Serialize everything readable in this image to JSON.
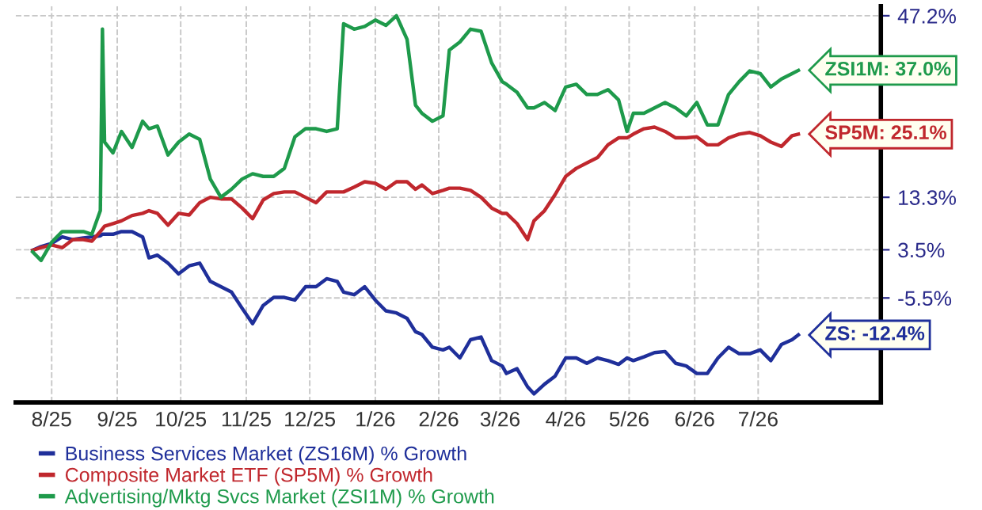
{
  "chart_data": {
    "type": "line",
    "x": [
      "2025-08-07",
      "2025-08-11",
      "2025-08-16",
      "2025-08-21",
      "2025-08-26",
      "2025-08-31",
      "2025-09-04",
      "2025-09-08",
      "2025-09-09",
      "2025-09-10",
      "2025-09-14",
      "2025-09-18",
      "2025-09-23",
      "2025-09-28",
      "2025-10-01",
      "2025-10-05",
      "2025-10-10",
      "2025-10-15",
      "2025-10-20",
      "2025-10-25",
      "2025-10-30",
      "2025-11-04",
      "2025-11-09",
      "2025-11-14",
      "2025-11-19",
      "2025-11-24",
      "2025-11-29",
      "2025-12-04",
      "2025-12-09",
      "2025-12-14",
      "2025-12-19",
      "2025-12-24",
      "2025-12-29",
      "2026-01-01",
      "2026-01-06",
      "2026-01-11",
      "2026-01-16",
      "2026-01-21",
      "2026-01-26",
      "2026-01-31",
      "2026-02-04",
      "2026-02-07",
      "2026-02-12",
      "2026-02-17",
      "2026-02-20",
      "2026-02-25",
      "2026-03-02",
      "2026-03-07",
      "2026-03-12",
      "2026-03-17",
      "2026-03-19",
      "2026-03-24",
      "2026-03-29",
      "2026-04-01",
      "2026-04-06",
      "2026-04-11",
      "2026-04-16",
      "2026-04-21",
      "2026-04-26",
      "2026-05-01",
      "2026-05-06",
      "2026-05-11",
      "2026-05-15",
      "2026-05-18",
      "2026-05-23",
      "2026-05-28",
      "2026-06-02",
      "2026-06-07",
      "2026-06-12",
      "2026-06-17",
      "2026-06-22",
      "2026-06-27",
      "2026-07-02",
      "2026-07-07",
      "2026-07-12",
      "2026-07-17",
      "2026-07-22",
      "2026-07-27",
      "2026-08-01",
      "2026-08-04"
    ],
    "series": [
      {
        "name": "Business Services Market (ZS16M) % Growth",
        "color": "#1f2f9a",
        "values": [
          3.4,
          4.1,
          4.7,
          5.9,
          5.4,
          5.7,
          5.9,
          6.1,
          6.4,
          6.4,
          6.4,
          6.9,
          6.9,
          5.9,
          2.0,
          2.5,
          1.0,
          -1.0,
          0.5,
          1.0,
          -2.4,
          -3.4,
          -4.4,
          -7.4,
          -10.3,
          -6.9,
          -5.4,
          -5.4,
          -5.9,
          -3.4,
          -3.4,
          -1.9,
          -2.4,
          -4.4,
          -4.9,
          -3.4,
          -5.9,
          -7.9,
          -8.3,
          -9.3,
          -11.8,
          -12.3,
          -14.7,
          -15.2,
          -14.7,
          -16.7,
          -13.3,
          -12.8,
          -17.2,
          -18.2,
          -19.6,
          -18.7,
          -22.1,
          -23.4,
          -21.6,
          -20.1,
          -16.7,
          -16.7,
          -17.7,
          -16.7,
          -17.2,
          -17.9,
          -16.7,
          -17.2,
          -16.5,
          -15.7,
          -15.5,
          -17.7,
          -18.2,
          -19.6,
          -19.6,
          -16.7,
          -14.7,
          -15.9,
          -15.9,
          -15.2,
          -17.2,
          -14.2,
          -13.3,
          -12.4
        ]
      },
      {
        "name": "Composite Market ETF (SP5M) % Growth",
        "color": "#c0272d",
        "values": [
          3.4,
          3.9,
          4.4,
          3.9,
          5.4,
          5.4,
          5.1,
          6.9,
          7.4,
          7.9,
          8.4,
          8.9,
          9.9,
          10.3,
          10.8,
          10.3,
          8.1,
          10.3,
          10.0,
          12.3,
          13.3,
          13.0,
          13.0,
          11.3,
          9.3,
          12.8,
          14.0,
          14.3,
          14.3,
          13.3,
          12.3,
          14.3,
          14.3,
          14.3,
          15.2,
          16.2,
          15.9,
          14.8,
          16.2,
          16.2,
          14.8,
          15.6,
          14.0,
          14.6,
          15.0,
          15.0,
          14.6,
          13.3,
          11.3,
          10.3,
          10.3,
          8.4,
          5.4,
          8.9,
          10.8,
          13.8,
          17.2,
          18.7,
          19.7,
          20.7,
          23.1,
          24.4,
          24.4,
          25.1,
          26.1,
          26.4,
          25.6,
          24.4,
          24.4,
          24.6,
          23.1,
          23.1,
          24.4,
          25.1,
          25.4,
          24.8,
          23.6,
          22.8,
          24.8,
          25.1
        ]
      },
      {
        "name": "Advertising/Mktg Svcs Market (ZSI1M) % Growth",
        "color": "#1e9a4b",
        "values": [
          3.1,
          1.5,
          4.9,
          6.9,
          6.9,
          6.9,
          6.4,
          10.8,
          44.7,
          23.6,
          21.6,
          25.6,
          22.6,
          27.5,
          26.1,
          26.6,
          21.2,
          23.6,
          25.1,
          24.1,
          16.7,
          13.3,
          14.8,
          16.7,
          17.7,
          17.2,
          17.2,
          18.7,
          24.6,
          26.1,
          26.1,
          25.6,
          26.1,
          45.7,
          44.7,
          45.2,
          46.4,
          45.4,
          47.2,
          42.8,
          30.5,
          29.0,
          27.5,
          28.5,
          40.8,
          42.3,
          44.7,
          44.3,
          38.4,
          34.9,
          34.4,
          32.9,
          30.0,
          30.0,
          31.0,
          29.5,
          33.9,
          34.4,
          32.5,
          32.5,
          33.4,
          31.5,
          25.6,
          29.0,
          29.0,
          30.0,
          31.0,
          30.0,
          28.5,
          31.0,
          26.8,
          26.8,
          32.5,
          34.9,
          36.9,
          36.4,
          33.9,
          35.4,
          36.4,
          37.0
        ]
      }
    ],
    "annotations": [
      {
        "text": "ZS: -12.4%",
        "x": "2026-08-04",
        "y": -12.4
      },
      {
        "text": "SP5M: 25.1%",
        "x": "2026-08-04",
        "y": 25.1
      },
      {
        "text": "ZSI1M: 37.0%",
        "x": "2026-08-04",
        "y": 37.0
      }
    ],
    "xlim": [
      "2025-07-30",
      "2026-09-12"
    ],
    "xticks": [
      {
        "value": "2025-08-16",
        "label": "8/25"
      },
      {
        "value": "2025-09-16",
        "label": "9/25"
      },
      {
        "value": "2025-10-16",
        "label": "10/25"
      },
      {
        "value": "2025-11-16",
        "label": "11/25"
      },
      {
        "value": "2025-12-16",
        "label": "12/25"
      },
      {
        "value": "2026-01-16",
        "label": "1/26"
      },
      {
        "value": "2026-02-15",
        "label": "2/26"
      },
      {
        "value": "2026-03-16",
        "label": "3/26"
      },
      {
        "value": "2026-04-16",
        "label": "4/26"
      },
      {
        "value": "2026-05-16",
        "label": "5/26"
      },
      {
        "value": "2026-06-16",
        "label": "6/26"
      },
      {
        "value": "2026-07-16",
        "label": "7/26"
      }
    ],
    "ylim": [
      -25,
      49
    ],
    "yticks": [
      {
        "value": 47.2,
        "label": "47.2%"
      },
      {
        "value": 13.3,
        "label": "13.3%"
      },
      {
        "value": 3.5,
        "label": "3.5%"
      },
      {
        "value": -5.5,
        "label": "-5.5%"
      }
    ],
    "grid": true,
    "legend": "bottom",
    "line_style": "solid",
    "marker": "none"
  }
}
